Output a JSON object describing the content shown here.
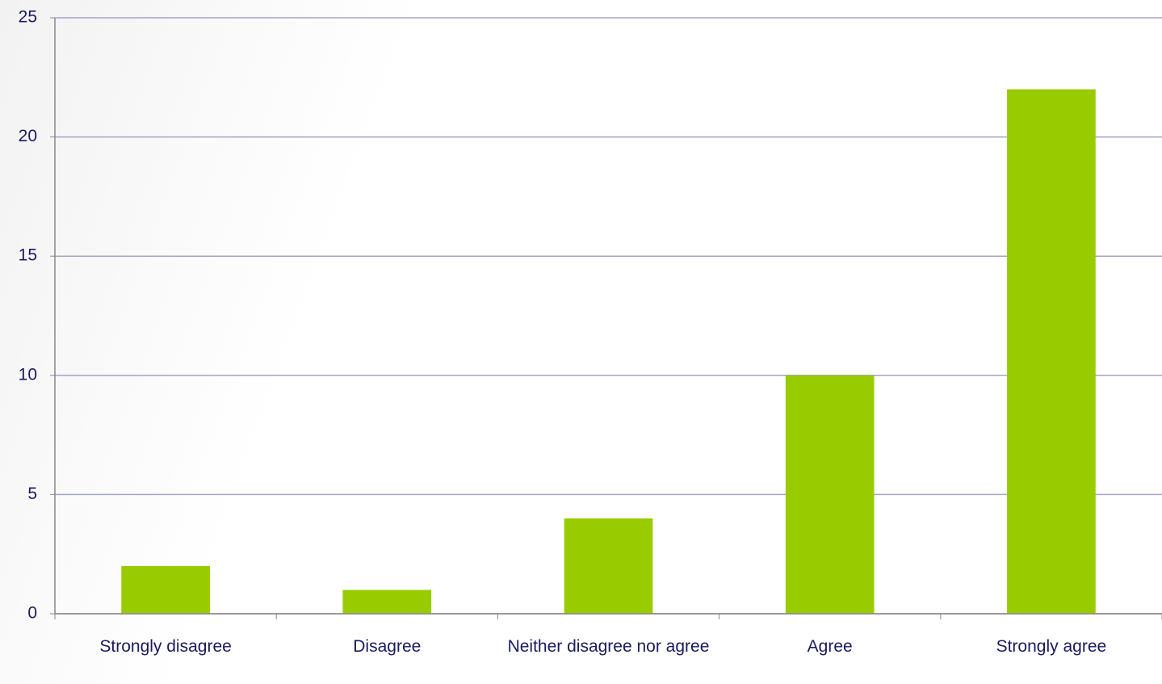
{
  "chart_data": {
    "type": "bar",
    "categories": [
      "Strongly disagree",
      "Disagree",
      "Neither disagree nor agree",
      "Agree",
      "Strongly agree"
    ],
    "values": [
      2,
      1,
      4,
      10,
      22
    ],
    "color": "#99cc00",
    "ylim": [
      0,
      25
    ],
    "yticks": [
      0,
      5,
      10,
      15,
      20,
      25
    ],
    "grid": true
  }
}
